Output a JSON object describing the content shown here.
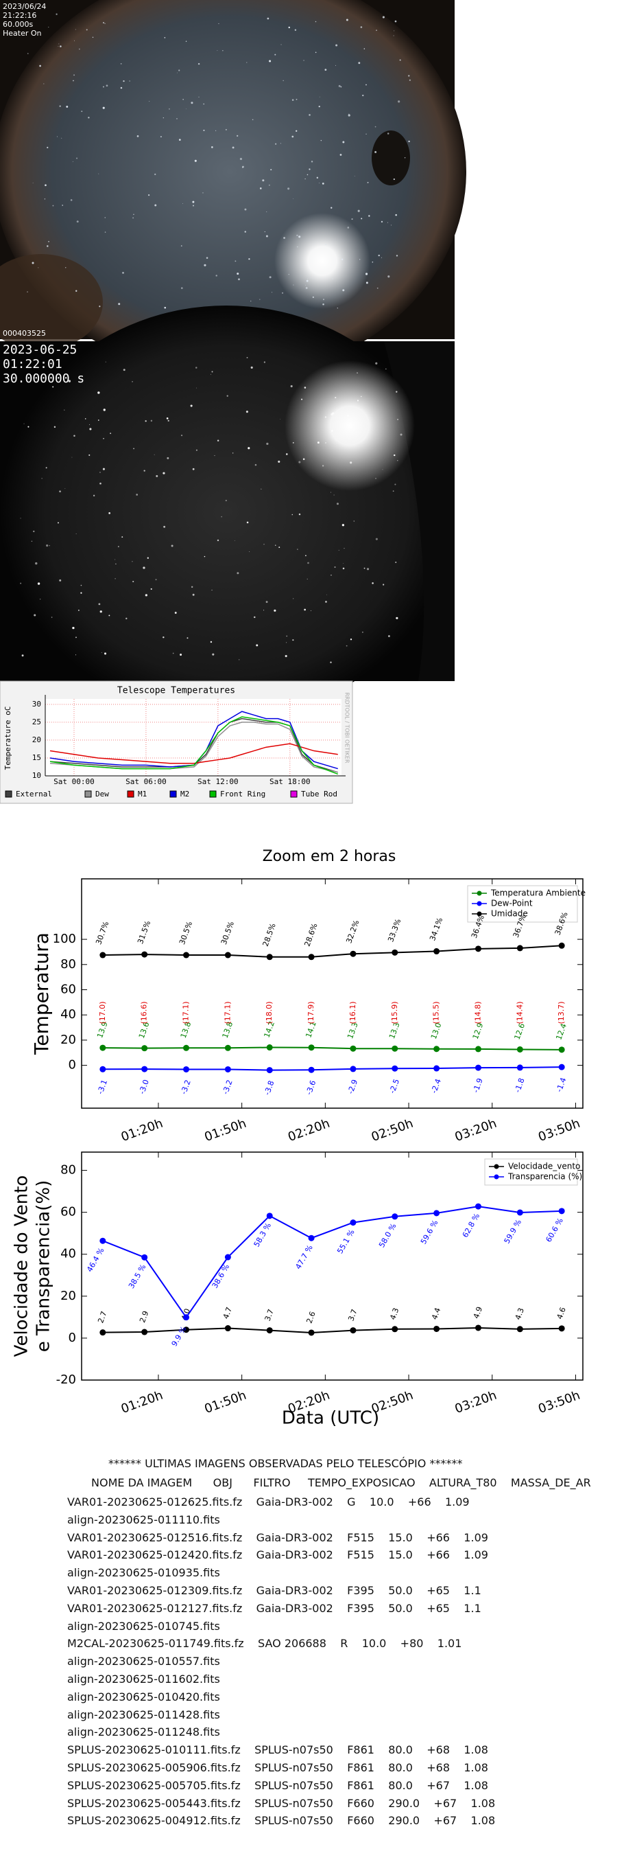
{
  "camera1": {
    "lines": [
      "2023/06/24",
      "21:22:16",
      "60.000s",
      "Heater On"
    ],
    "id": "000403525"
  },
  "camera2": {
    "lines": [
      "2023-06-25",
      "01:22:01",
      "30.000000 s"
    ]
  },
  "chart_data": [
    {
      "type": "line",
      "title": "Telescope Temperatures",
      "ylabel": "Temperature oC",
      "side_text": "RRDTOOL / TOBI OETIKER",
      "x": [
        -2,
        0,
        2,
        4,
        6,
        8,
        10,
        11,
        12,
        13,
        14,
        15,
        16,
        17,
        18,
        19,
        20,
        22
      ],
      "xlim": [
        -2.4,
        22.3
      ],
      "xticks": [
        {
          "value": 0,
          "label": "Sat 00:00"
        },
        {
          "value": 6,
          "label": "Sat 06:00"
        },
        {
          "value": 12,
          "label": "Sat 12:00"
        },
        {
          "value": 18,
          "label": "Sat 18:00"
        }
      ],
      "ylim": [
        10,
        31.5
      ],
      "yticks": [
        10,
        15,
        20,
        25,
        30
      ],
      "grid": true,
      "series": [
        {
          "name": "External",
          "color": "#404040",
          "values": [
            14,
            13.5,
            13,
            12.5,
            12.5,
            12.5,
            13,
            16,
            22,
            25,
            26,
            25.5,
            25,
            25,
            24,
            16,
            13,
            11
          ]
        },
        {
          "name": "Dew",
          "color": "#909090",
          "values": [
            13.5,
            13,
            12.5,
            12,
            12,
            12,
            12.5,
            15.5,
            21,
            24,
            25,
            25,
            24.5,
            24.5,
            23,
            15.5,
            12.5,
            11
          ]
        },
        {
          "name": "M1",
          "color": "#e00000",
          "values": [
            17,
            16,
            15,
            14.5,
            14,
            13.5,
            13.5,
            14,
            14.5,
            15,
            16,
            17,
            18,
            18.5,
            19,
            18,
            17,
            16
          ]
        },
        {
          "name": "M2",
          "color": "#0000e0",
          "values": [
            15,
            14,
            13.5,
            13,
            13,
            12.5,
            13,
            17,
            24,
            26,
            28,
            27,
            26,
            26,
            25,
            17,
            14,
            12
          ]
        },
        {
          "name": "Front Ring",
          "color": "#00c000",
          "values": [
            14,
            13,
            12.5,
            12,
            12,
            12,
            13,
            17,
            22,
            25,
            26.5,
            26,
            25.5,
            25,
            24,
            17,
            13,
            10.5
          ]
        },
        {
          "name": "Tube Rod",
          "color": "#e000e0",
          "values": [
            null,
            null,
            null,
            null,
            null,
            null,
            null,
            null,
            null,
            null,
            null,
            null,
            null,
            null,
            null,
            null,
            null,
            null
          ]
        }
      ]
    },
    {
      "type": "line",
      "title": "Zoom em 2 horas",
      "ylabel": "Temperatura",
      "x": [
        60,
        75,
        90,
        105,
        120,
        135,
        150,
        165,
        180,
        195,
        210,
        225
      ],
      "xlim": [
        52.4,
        232.6
      ],
      "xticks": [
        {
          "value": 80,
          "label": "01:20h"
        },
        {
          "value": 110,
          "label": "01:50h"
        },
        {
          "value": 140,
          "label": "02:20h"
        },
        {
          "value": 170,
          "label": "02:50h"
        },
        {
          "value": 200,
          "label": "03:20h"
        },
        {
          "value": 230,
          "label": "03:50h"
        }
      ],
      "ylim": [
        -34,
        148
      ],
      "yticks": [
        0,
        20,
        40,
        60,
        80,
        100
      ],
      "legend": "upper right",
      "series": [
        {
          "name": "Temperatura Ambiente",
          "color": "green",
          "values": [
            13.9,
            13.6,
            13.8,
            13.8,
            14.2,
            14.1,
            13.3,
            13.3,
            13.0,
            12.9,
            12.6,
            12.4
          ],
          "value_labels": [
            "13.9",
            "13.6",
            "13.8",
            "13.8",
            "14.2",
            "14.1",
            "13.3",
            "13.3",
            "13.0",
            "12.9",
            "12.6",
            "12.4"
          ]
        },
        {
          "name": "Dew-Point",
          "color": "blue",
          "values": [
            -3.1,
            -3.0,
            -3.2,
            -3.2,
            -3.8,
            -3.6,
            -2.9,
            -2.5,
            -2.4,
            -1.9,
            -1.8,
            -1.4
          ],
          "value_labels": [
            "-3.1",
            "-3.0",
            "-3.2",
            "-3.2",
            "-3.8",
            "-3.6",
            "-2.9",
            "-2.5",
            "-2.4",
            "-1.9",
            "-1.8",
            "-1.4"
          ]
        },
        {
          "name": "Umidade",
          "color": "black",
          "values": [
            87.5,
            88,
            87.5,
            87.5,
            86,
            86,
            88.5,
            89.5,
            90.5,
            92.5,
            93,
            95
          ]
        }
      ],
      "humidity_labels": [
        "30.7%",
        "31.5%",
        "30.5%",
        "30.5%",
        "28.5%",
        "28.6%",
        "32.2%",
        "33.3%",
        "34.1%",
        "36.4%",
        "36.7%",
        "38.6%"
      ],
      "spread_labels": [
        "(17.0)",
        "(16.6)",
        "(17.1)",
        "(17.1)",
        "(18.0)",
        "(17.9)",
        "(16.1)",
        "(15.9)",
        "(15.5)",
        "(14.8)",
        "(14.4)",
        "(13.7)"
      ]
    },
    {
      "type": "line",
      "ylabel": [
        "Velocidade do Vento",
        "e Transparencia(%)"
      ],
      "xlabel": "Data (UTC)",
      "x": [
        60,
        75,
        90,
        105,
        120,
        135,
        150,
        165,
        180,
        195,
        210,
        225
      ],
      "xlim": [
        52.4,
        232.6
      ],
      "xticks": [
        {
          "value": 80,
          "label": "01:20h"
        },
        {
          "value": 110,
          "label": "01:50h"
        },
        {
          "value": 140,
          "label": "02:20h"
        },
        {
          "value": 170,
          "label": "02:50h"
        },
        {
          "value": 200,
          "label": "03:20h"
        },
        {
          "value": 230,
          "label": "03:50h"
        }
      ],
      "ylim": [
        -20,
        88.7
      ],
      "yticks": [
        -20,
        0,
        20,
        40,
        60,
        80
      ],
      "legend": "upper right",
      "series": [
        {
          "name": "Velocidade_vento",
          "color": "black",
          "values": [
            2.7,
            2.9,
            4.0,
            4.7,
            3.7,
            2.6,
            3.7,
            4.3,
            4.4,
            4.9,
            4.3,
            4.6
          ],
          "value_labels": [
            "2.7",
            "2.9",
            "4.0",
            "4.7",
            "3.7",
            "2.6",
            "3.7",
            "4.3",
            "4.4",
            "4.9",
            "4.3",
            "4.6"
          ]
        },
        {
          "name": "Transparencia (%)",
          "color": "blue",
          "values": [
            46.4,
            38.5,
            9.9,
            38.6,
            58.3,
            47.7,
            55.1,
            58.0,
            59.6,
            62.8,
            59.9,
            60.6
          ],
          "value_labels": [
            "46.4 %",
            "38.5 %",
            "9.9 %",
            "38.6 %",
            "58.3 %",
            "47.7 %",
            "55.1 %",
            "58.0 %",
            "59.6 %",
            "62.8 %",
            "59.9 %",
            "60.6 %"
          ]
        }
      ]
    }
  ],
  "list": {
    "title": "****** ULTIMAS IMAGENS OBSERVADAS PELO TELESCÓPIO ******",
    "header": "NOME DA IMAGEM      OBJ      FILTRO     TEMPO_EXPOSICAO    ALTURA_T80    MASSA_DE_AR",
    "rows": [
      "VAR01-20230625-012625.fits.fz    Gaia-DR3-002    G    10.0    +66    1.09",
      "align-20230625-011110.fits",
      "VAR01-20230625-012516.fits.fz    Gaia-DR3-002    F515    15.0    +66    1.09",
      "VAR01-20230625-012420.fits.fz    Gaia-DR3-002    F515    15.0    +66    1.09",
      "align-20230625-010935.fits",
      "VAR01-20230625-012309.fits.fz    Gaia-DR3-002    F395    50.0    +65    1.1",
      "VAR01-20230625-012127.fits.fz    Gaia-DR3-002    F395    50.0    +65    1.1",
      "align-20230625-010745.fits",
      "M2CAL-20230625-011749.fits.fz    SAO 206688    R    10.0    +80    1.01",
      "align-20230625-010557.fits",
      "align-20230625-011602.fits",
      "align-20230625-010420.fits",
      "align-20230625-011428.fits",
      "align-20230625-011248.fits",
      "SPLUS-20230625-010111.fits.fz    SPLUS-n07s50    F861    80.0    +68    1.08",
      "SPLUS-20230625-005906.fits.fz    SPLUS-n07s50    F861    80.0    +68    1.08",
      "SPLUS-20230625-005705.fits.fz    SPLUS-n07s50    F861    80.0    +67    1.08",
      "SPLUS-20230625-005443.fits.fz    SPLUS-n07s50    F660    290.0    +67    1.08",
      "SPLUS-20230625-004912.fits.fz    SPLUS-n07s50    F660    290.0    +67    1.08"
    ]
  }
}
